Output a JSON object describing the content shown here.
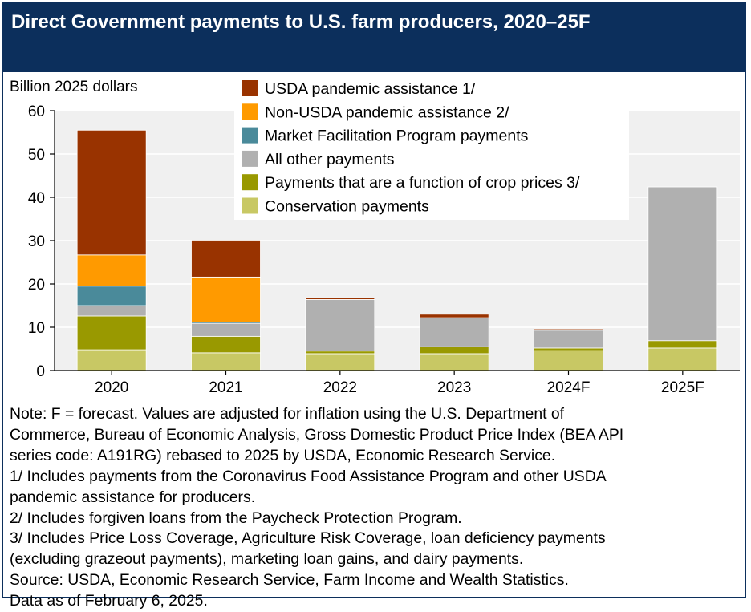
{
  "title": "Direct Government payments to U.S. farm producers, 2020–25F",
  "chart_data": {
    "type": "bar",
    "stacked": true,
    "ylabel": "Billion 2025 dollars",
    "ylim": [
      0,
      60
    ],
    "yticks": [
      "0",
      "10",
      "20",
      "30",
      "40",
      "50",
      "60"
    ],
    "categories": [
      "2020",
      "2021",
      "2022",
      "2023",
      "2024F",
      "2025F"
    ],
    "series": [
      {
        "name": "Conservation payments",
        "color": "#c8c864",
        "values": [
          4.8,
          4.1,
          3.9,
          3.9,
          4.6,
          5.2
        ]
      },
      {
        "name": "Payments that are a function of crop prices 3/",
        "color": "#999900",
        "values": [
          7.8,
          3.8,
          0.6,
          1.6,
          0.6,
          1.7
        ]
      },
      {
        "name": "All other payments",
        "color": "#b0b0b0",
        "values": [
          2.4,
          3.0,
          11.9,
          6.7,
          4.1,
          35.5
        ]
      },
      {
        "name": "Market Facilitation Program payments",
        "color": "#4a8a9a",
        "values": [
          4.5,
          0.3,
          0.0,
          0.0,
          0.0,
          0.0
        ]
      },
      {
        "name": "Non-USDA pandemic assistance 2/",
        "color": "#ff9a00",
        "values": [
          7.2,
          10.4,
          0.0,
          0.0,
          0.0,
          0.0
        ]
      },
      {
        "name": "USDA pandemic assistance 1/",
        "color": "#993300",
        "values": [
          28.8,
          8.5,
          0.4,
          0.8,
          0.3,
          0.0
        ]
      }
    ],
    "legend_order": [
      "USDA pandemic assistance 1/",
      "Non-USDA pandemic assistance 2/",
      "Market Facilitation Program payments",
      "All other payments",
      "Payments that are a function of crop prices 3/",
      "Conservation payments"
    ],
    "legend_position": "top-center",
    "grid": true,
    "plot_background": "#f0f0f0"
  },
  "notes": [
    "Note: F = forecast. Values are adjusted for inflation using the U.S. Department of",
    "Commerce, Bureau of Economic Analysis, Gross Domestic Product Price Index (BEA API",
    "series code: A191RG) rebased to 2025 by USDA, Economic Research Service.",
    "1/ Includes payments from the Coronavirus Food Assistance Program and other USDA",
    "pandemic assistance for producers.",
    "2/ Includes forgiven loans from the Paycheck Protection Program.",
    "3/ Includes Price Loss Coverage, Agriculture Risk Coverage, loan deficiency payments",
    "(excluding grazeout payments), marketing loan gains, and dairy payments.",
    "Source: USDA, Economic Research Service, Farm Income and Wealth Statistics.",
    "Data as of February 6, 2025."
  ]
}
